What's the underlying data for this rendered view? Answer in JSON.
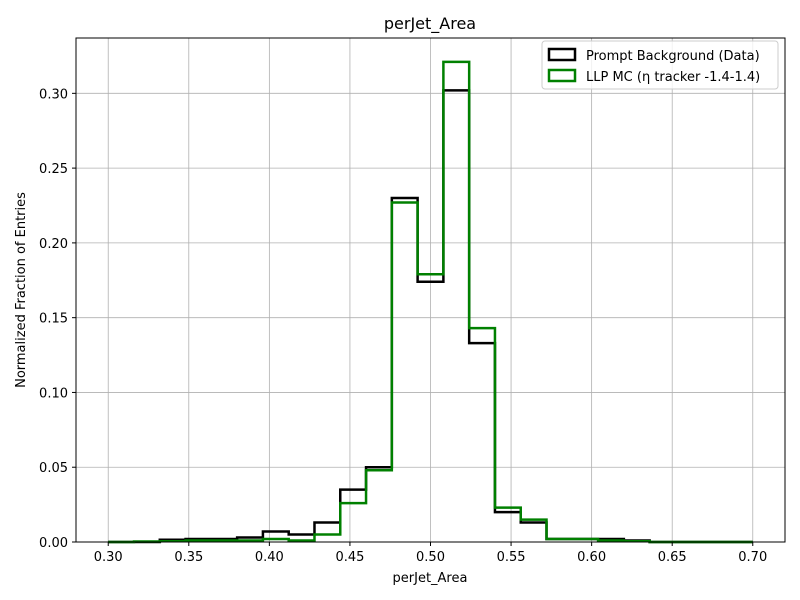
{
  "chart_data": {
    "type": "histogram-step",
    "title": "perJet_Area",
    "xlabel": "perJet_Area",
    "ylabel": "Normalized Fraction of Entries",
    "xlim": [
      0.28,
      0.72
    ],
    "ylim": [
      0.0,
      0.337
    ],
    "grid": true,
    "legend_position": "top-right",
    "x_ticks": [
      "0.30",
      "0.35",
      "0.40",
      "0.45",
      "0.50",
      "0.55",
      "0.60",
      "0.65",
      "0.70"
    ],
    "x_tick_values": [
      0.3,
      0.35,
      0.4,
      0.45,
      0.5,
      0.55,
      0.6,
      0.65,
      0.7
    ],
    "y_ticks": [
      "0.00",
      "0.05",
      "0.10",
      "0.15",
      "0.20",
      "0.25",
      "0.30"
    ],
    "y_tick_values": [
      0.0,
      0.05,
      0.1,
      0.15,
      0.2,
      0.25,
      0.3
    ],
    "bin_edges": [
      0.3,
      0.316,
      0.332,
      0.348,
      0.364,
      0.38,
      0.396,
      0.412,
      0.428,
      0.444,
      0.46,
      0.476,
      0.492,
      0.508,
      0.524,
      0.54,
      0.556,
      0.572,
      0.588,
      0.604,
      0.62,
      0.636,
      0.652,
      0.668,
      0.684,
      0.7
    ],
    "series": [
      {
        "name": "Prompt Background (Data)",
        "color": "#000000",
        "values": [
          0.0,
          0.0,
          0.0015,
          0.002,
          0.002,
          0.003,
          0.007,
          0.005,
          0.013,
          0.035,
          0.05,
          0.23,
          0.174,
          0.302,
          0.133,
          0.02,
          0.013,
          0.002,
          0.002,
          0.002,
          0.001,
          0.0,
          0.0,
          0.0,
          0.0
        ]
      },
      {
        "name": "LLP MC (η tracker -1.4-1.4)",
        "color": "#008000",
        "values": [
          0.0,
          0.0003,
          0.0005,
          0.001,
          0.001,
          0.001,
          0.002,
          0.001,
          0.005,
          0.026,
          0.048,
          0.227,
          0.179,
          0.321,
          0.143,
          0.023,
          0.015,
          0.002,
          0.002,
          0.001,
          0.0005,
          0.0,
          0.0,
          0.0,
          0.0
        ]
      }
    ]
  }
}
